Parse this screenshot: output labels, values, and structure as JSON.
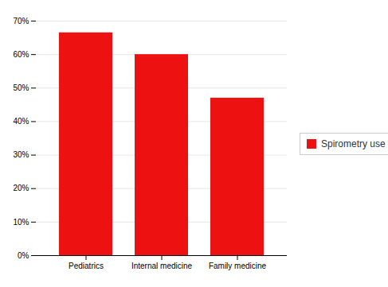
{
  "chart_data": {
    "type": "bar",
    "categories": [
      "Pediatrics",
      "Internal medicine",
      "Family medicine"
    ],
    "series": [
      {
        "name": "Spirometry use",
        "color": "#ee1111",
        "values": [
          66.5,
          60.0,
          47.0
        ]
      }
    ],
    "ylim": [
      0,
      70
    ],
    "yticks": [
      {
        "value": 0,
        "label": "0%"
      },
      {
        "value": 10,
        "label": "10%"
      },
      {
        "value": 20,
        "label": "20%"
      },
      {
        "value": 30,
        "label": "30%"
      },
      {
        "value": 40,
        "label": "40%"
      },
      {
        "value": 50,
        "label": "50%"
      },
      {
        "value": 60,
        "label": "60%"
      },
      {
        "value": 70,
        "label": "70%"
      }
    ],
    "grid": true,
    "legend": "right"
  }
}
